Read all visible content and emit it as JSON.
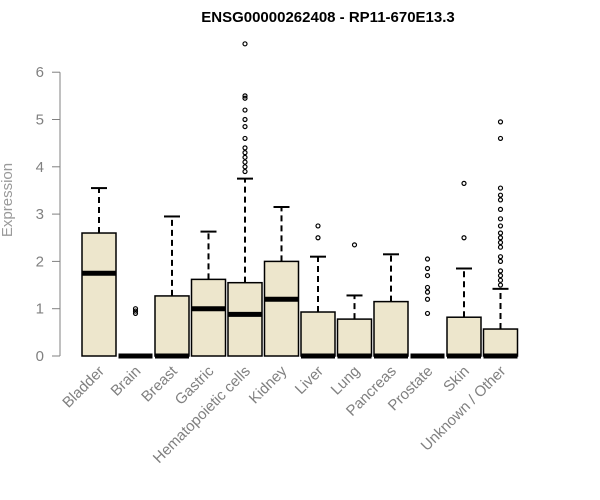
{
  "chart_data": {
    "type": "boxplot",
    "title": "ENSG00000262408 - RP11-670E13.3",
    "xlabel": "",
    "ylabel": "Expression",
    "ylim": [
      0,
      6.6
    ],
    "yticks": [
      0,
      1,
      2,
      3,
      4,
      5,
      6
    ],
    "grid": false,
    "legend": "none",
    "colors": {
      "box_fill": "#ede6cc",
      "stroke": "#000000",
      "axis_text": "#808080"
    },
    "categories": [
      "Bladder",
      "Brain",
      "Breast",
      "Gastric",
      "Hematopoietic cells",
      "Kidney",
      "Liver",
      "Lung",
      "Pancreas",
      "Prostate",
      "Skin",
      "Unknown / Other"
    ],
    "boxes": [
      {
        "category": "Bladder",
        "q1": 0,
        "median": 1.75,
        "q3": 2.6,
        "whisker_low": 0,
        "whisker_high": 3.55,
        "outliers": []
      },
      {
        "category": "Brain",
        "q1": 0,
        "median": 0,
        "q3": 0,
        "whisker_low": 0,
        "whisker_high": 0,
        "outliers": [
          0.9,
          0.95,
          1.0
        ]
      },
      {
        "category": "Breast",
        "q1": 0,
        "median": 0,
        "q3": 1.27,
        "whisker_low": 0,
        "whisker_high": 2.95,
        "outliers": []
      },
      {
        "category": "Gastric",
        "q1": 0,
        "median": 1.0,
        "q3": 1.62,
        "whisker_low": 0,
        "whisker_high": 2.63,
        "outliers": []
      },
      {
        "category": "Hematopoietic cells",
        "q1": 0,
        "median": 0.88,
        "q3": 1.55,
        "whisker_low": 0,
        "whisker_high": 3.75,
        "outliers": [
          3.9,
          4.0,
          4.1,
          4.2,
          4.3,
          4.4,
          4.6,
          4.85,
          5.0,
          5.2,
          5.45,
          5.5,
          6.6
        ]
      },
      {
        "category": "Kidney",
        "q1": 0,
        "median": 1.2,
        "q3": 2.0,
        "whisker_low": 0,
        "whisker_high": 3.15,
        "outliers": []
      },
      {
        "category": "Liver",
        "q1": 0,
        "median": 0,
        "q3": 0.93,
        "whisker_low": 0,
        "whisker_high": 2.1,
        "outliers": [
          2.5,
          2.75
        ]
      },
      {
        "category": "Lung",
        "q1": 0,
        "median": 0,
        "q3": 0.78,
        "whisker_low": 0,
        "whisker_high": 1.28,
        "outliers": [
          2.35
        ]
      },
      {
        "category": "Pancreas",
        "q1": 0,
        "median": 0,
        "q3": 1.15,
        "whisker_low": 0,
        "whisker_high": 2.15,
        "outliers": []
      },
      {
        "category": "Prostate",
        "q1": 0,
        "median": 0,
        "q3": 0,
        "whisker_low": 0,
        "whisker_high": 0,
        "outliers": [
          0.9,
          1.2,
          1.35,
          1.45,
          1.7,
          1.85,
          2.05
        ]
      },
      {
        "category": "Skin",
        "q1": 0,
        "median": 0,
        "q3": 0.82,
        "whisker_low": 0,
        "whisker_high": 1.85,
        "outliers": [
          2.5,
          3.65
        ]
      },
      {
        "category": "Unknown / Other",
        "q1": 0,
        "median": 0,
        "q3": 0.57,
        "whisker_low": 0,
        "whisker_high": 1.42,
        "outliers": [
          1.5,
          1.6,
          1.7,
          1.8,
          2.0,
          2.1,
          2.3,
          2.4,
          2.5,
          2.6,
          2.75,
          2.9,
          3.1,
          3.3,
          3.4,
          3.55,
          4.6,
          4.95
        ]
      }
    ]
  }
}
